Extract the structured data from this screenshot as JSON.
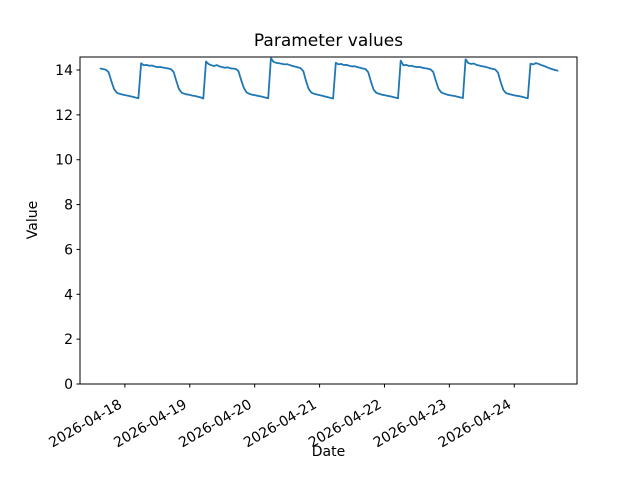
{
  "figure": {
    "title": "Parameter values",
    "xlabel": "Date",
    "ylabel": "Value",
    "colors": {
      "line": "#1f77b4",
      "spine": "#000000",
      "text": "#000000",
      "background": "#ffffff"
    }
  },
  "chart_data": {
    "type": "line",
    "title": "Parameter values",
    "xlabel": "Date",
    "ylabel": "Value",
    "grid": false,
    "legend": null,
    "x_start": "2026-04-17 15:00",
    "x_interval_hours": 1,
    "x_tick_labels": [
      "2026-04-18",
      "2026-04-19",
      "2026-04-20",
      "2026-04-21",
      "2026-04-22",
      "2026-04-23",
      "2026-04-24"
    ],
    "x_tick_offsets_hours": [
      9,
      33,
      57,
      81,
      105,
      129,
      153
    ],
    "xlim_hours": [
      -7.6,
      176.2
    ],
    "y_ticks": [
      0,
      2,
      4,
      6,
      8,
      10,
      12,
      14
    ],
    "ylim": [
      0,
      14.58
    ],
    "values": [
      14.06,
      14.04,
      14.01,
      13.9,
      13.5,
      13.15,
      12.99,
      12.94,
      12.91,
      12.88,
      12.86,
      12.83,
      12.8,
      12.77,
      12.74,
      14.3,
      14.21,
      14.23,
      14.19,
      14.2,
      14.16,
      14.13,
      14.14,
      14.11,
      14.09,
      14.07,
      14.04,
      13.92,
      13.52,
      13.15,
      12.99,
      12.94,
      12.91,
      12.89,
      12.86,
      12.84,
      12.81,
      12.78,
      12.73,
      14.38,
      14.26,
      14.21,
      14.18,
      14.22,
      14.16,
      14.13,
      14.1,
      14.12,
      14.08,
      14.06,
      14.05,
      13.95,
      13.55,
      13.2,
      13.0,
      12.94,
      12.9,
      12.88,
      12.85,
      12.83,
      12.8,
      12.77,
      12.74,
      14.52,
      14.36,
      14.32,
      14.3,
      14.28,
      14.25,
      14.26,
      14.22,
      14.18,
      14.15,
      14.12,
      14.08,
      13.95,
      13.5,
      13.15,
      12.99,
      12.94,
      12.91,
      12.88,
      12.85,
      12.82,
      12.79,
      12.76,
      12.73,
      14.32,
      14.25,
      14.27,
      14.22,
      14.23,
      14.19,
      14.16,
      14.17,
      14.13,
      14.1,
      14.07,
      14.04,
      13.9,
      13.48,
      13.12,
      12.98,
      12.94,
      12.9,
      12.88,
      12.85,
      12.83,
      12.8,
      12.77,
      12.74,
      14.42,
      14.21,
      14.23,
      14.18,
      14.19,
      14.15,
      14.13,
      14.14,
      14.1,
      14.08,
      14.06,
      14.03,
      13.92,
      13.52,
      13.16,
      13.0,
      12.95,
      12.91,
      12.88,
      12.86,
      12.84,
      12.81,
      12.78,
      12.75,
      14.48,
      14.31,
      14.27,
      14.29,
      14.23,
      14.2,
      14.17,
      14.15,
      14.12,
      14.08,
      14.05,
      14.02,
      13.88,
      13.45,
      13.1,
      12.97,
      12.93,
      12.9,
      12.87,
      12.85,
      12.83,
      12.8,
      12.77,
      12.74,
      14.28,
      14.25,
      14.31,
      14.27,
      14.22,
      14.18,
      14.13,
      14.08,
      14.04,
      14.0,
      13.97
    ]
  }
}
